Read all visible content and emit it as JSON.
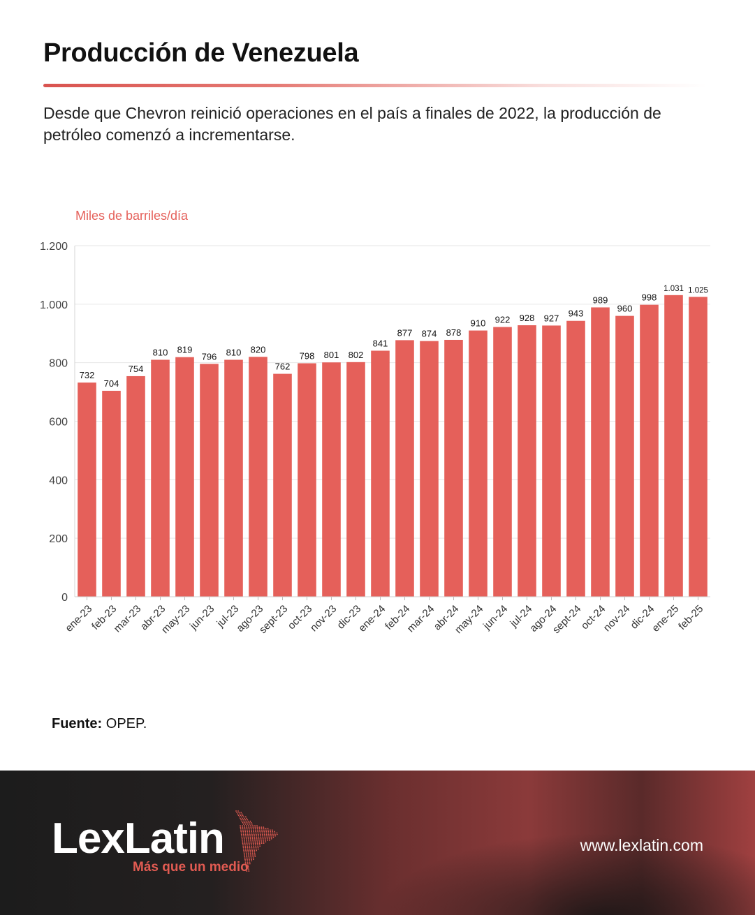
{
  "header": {
    "title": "Producción de Venezuela",
    "subtitle": "Desde que Chevron reinició operaciones en el país a finales de 2022, la producción de petróleo comenzó a incrementarse."
  },
  "chart_data": {
    "type": "bar",
    "ylabel": "Miles de barriles/día",
    "ylim": [
      0,
      1200
    ],
    "yticks": [
      0,
      200,
      400,
      600,
      800,
      1000,
      1200
    ],
    "ytick_labels": [
      "0",
      "200",
      "400",
      "600",
      "800",
      "1.000",
      "1.200"
    ],
    "categories": [
      "ene-23",
      "feb-23",
      "mar-23",
      "abr-23",
      "may-23",
      "jun-23",
      "jul-23",
      "ago-23",
      "sept-23",
      "oct-23",
      "nov-23",
      "dic-23",
      "ene-24",
      "feb-24",
      "mar-24",
      "abr-24",
      "may-24",
      "jun-24",
      "jul-24",
      "ago-24",
      "sept-24",
      "oct-24",
      "nov-24",
      "dic-24",
      "ene-25",
      "feb-25"
    ],
    "values": [
      732,
      704,
      754,
      810,
      819,
      796,
      810,
      820,
      762,
      798,
      801,
      802,
      841,
      877,
      874,
      878,
      910,
      922,
      928,
      927,
      943,
      989,
      960,
      998,
      1031,
      1025
    ],
    "value_labels": [
      "732",
      "704",
      "754",
      "810",
      "819",
      "796",
      "810",
      "820",
      "762",
      "798",
      "801",
      "802",
      "841",
      "877",
      "874",
      "878",
      "910",
      "922",
      "928",
      "927",
      "943",
      "989",
      "960",
      "998",
      "1.031",
      "1.025"
    ],
    "grid": true,
    "bar_color": "#e5605a"
  },
  "source": {
    "label": "Fuente:",
    "text": "OPEP."
  },
  "footer": {
    "logo_text": "LexLatin",
    "tagline": "Más que un medio",
    "url": "www.lexlatin.com"
  },
  "colors": {
    "accent": "#e5605a",
    "footer_dark": "#1c1c1c",
    "footer_red": "#8b3a3a"
  }
}
